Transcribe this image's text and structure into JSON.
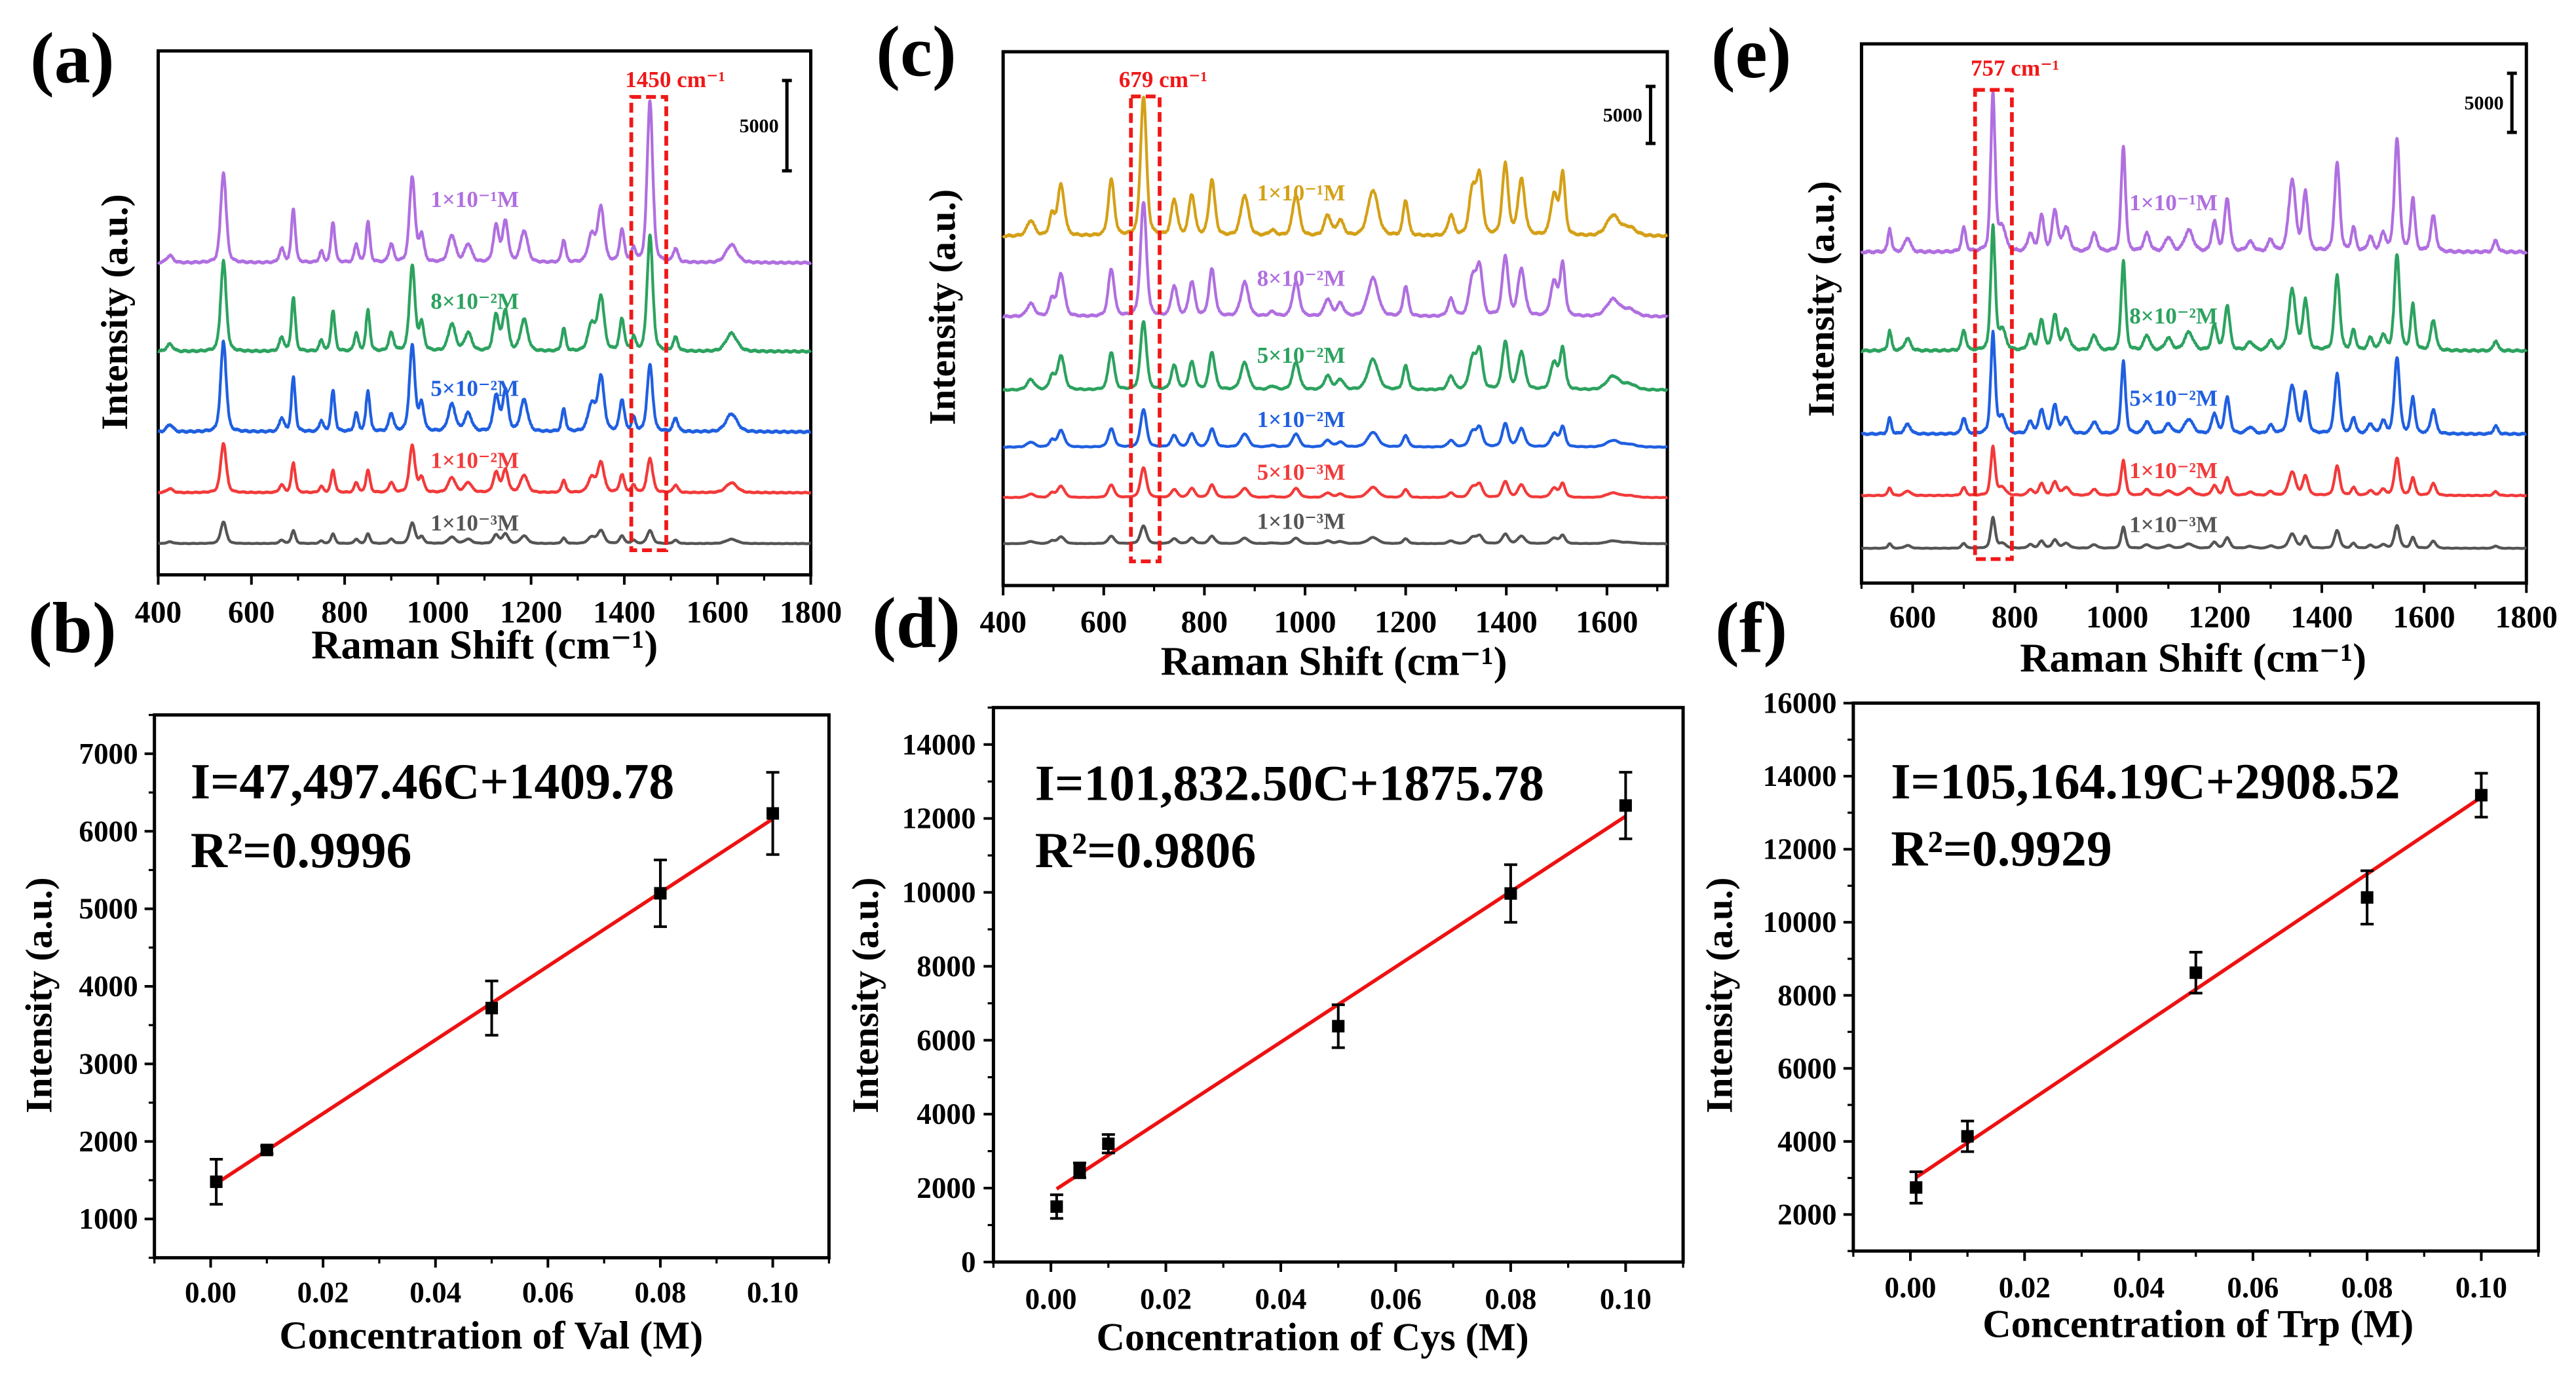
{
  "chart_data": [
    {
      "panel": "(a)",
      "type": "line",
      "xlabel": "Raman Shift (cm⁻¹)",
      "ylabel": "Intensity (a.u.)",
      "xlim": [
        400,
        1800
      ],
      "ylim": [
        0,
        29000
      ],
      "xticks": [
        "400",
        "600",
        "800",
        "1000",
        "1200",
        "1400",
        "1600",
        "1800"
      ],
      "minor_step": 100,
      "scale_bar": {
        "value": 5000,
        "label": "5000"
      },
      "highlight": {
        "label": "1450 cm⁻¹",
        "range": [
          1415,
          1490
        ],
        "marker_peak": 1455
      },
      "peaks": [
        [
          425,
          0.08,
          8
        ],
        [
          540,
          1.0,
          7
        ],
        [
          665,
          0.15,
          6
        ],
        [
          690,
          0.6,
          5
        ],
        [
          750,
          0.12,
          5
        ],
        [
          775,
          0.45,
          5
        ],
        [
          825,
          0.2,
          5
        ],
        [
          850,
          0.45,
          5
        ],
        [
          900,
          0.2,
          6
        ],
        [
          945,
          0.95,
          7
        ],
        [
          965,
          0.3,
          6
        ],
        [
          1030,
          0.3,
          9
        ],
        [
          1065,
          0.2,
          9
        ],
        [
          1125,
          0.4,
          7
        ],
        [
          1145,
          0.45,
          7
        ],
        [
          1185,
          0.35,
          9
        ],
        [
          1270,
          0.25,
          5
        ],
        [
          1330,
          0.3,
          9
        ],
        [
          1350,
          0.6,
          8
        ],
        [
          1395,
          0.35,
          6
        ],
        [
          1420,
          0.15,
          5
        ],
        [
          1455,
          0.6,
          7
        ],
        [
          1510,
          0.15,
          6
        ],
        [
          1630,
          0.2,
          14
        ]
      ],
      "traces": [
        {
          "label": "1×10⁻¹M",
          "color": "#b06fe0",
          "offset": 17270,
          "amp": 5000,
          "marker_mult": 3.0
        },
        {
          "label": "8×10⁻²M",
          "color": "#2ca25f",
          "offset": 12360,
          "amp": 5000,
          "marker_mult": 2.15
        },
        {
          "label": "5×10⁻²M",
          "color": "#1f5fe0",
          "offset": 7910,
          "amp": 5000,
          "marker_mult": 1.23
        },
        {
          "label": "1×10⁻²M",
          "color": "#f23a3a",
          "offset": 4545,
          "amp": 2750,
          "marker_mult": 1.15
        },
        {
          "label": "1×10⁻³M",
          "color": "#555555",
          "offset": 1730,
          "amp": 1200,
          "marker_mult": 1.0
        }
      ]
    },
    {
      "panel": "(b)",
      "type": "scatter",
      "xlabel": "Concentration of Val (M)",
      "ylabel": "Intensity (a.u.)",
      "xlim": [
        -0.01,
        0.11
      ],
      "ylim": [
        500,
        7500
      ],
      "xticks": [
        "0.00",
        "0.02",
        "0.04",
        "0.06",
        "0.08",
        "0.10"
      ],
      "x_minor_step": 0.01,
      "yticks": [
        "1000",
        "2000",
        "3000",
        "4000",
        "5000",
        "6000",
        "7000"
      ],
      "y_minor_step": 500,
      "points": {
        "x": [
          0.001,
          0.01,
          0.05,
          0.08,
          0.1
        ],
        "y": [
          1480,
          1890,
          3720,
          5200,
          6230
        ],
        "err": [
          290,
          50,
          350,
          430,
          530
        ]
      },
      "fit": {
        "slope": 47497.46,
        "intercept": 1409.78,
        "x_range": [
          0.001,
          0.1
        ],
        "color": "#ee1111"
      },
      "equation": "I=47,497.46C+1409.78",
      "r2": "R²=0.9996"
    },
    {
      "panel": "(c)",
      "type": "line",
      "xlabel": "Raman Shift (cm⁻¹)",
      "ylabel": "Intensity (a.u.)",
      "xlim": [
        400,
        1720
      ],
      "ylim": [
        0,
        46800
      ],
      "xticks": [
        "400",
        "600",
        "800",
        "1000",
        "1200",
        "1400",
        "1600"
      ],
      "minor_step": 100,
      "scale_bar": {
        "value": 5000,
        "label": "5000"
      },
      "highlight": {
        "label": "679 cm⁻¹",
        "range": [
          654,
          711
        ],
        "marker_peak": 679
      },
      "peaks": [
        [
          455,
          0.15,
          9
        ],
        [
          497,
          0.2,
          6
        ],
        [
          515,
          0.5,
          8
        ],
        [
          615,
          0.55,
          7
        ],
        [
          679,
          1.0,
          7
        ],
        [
          740,
          0.35,
          7
        ],
        [
          775,
          0.4,
          7
        ],
        [
          815,
          0.55,
          7
        ],
        [
          880,
          0.4,
          9
        ],
        [
          935,
          0.05,
          8
        ],
        [
          982,
          0.4,
          8
        ],
        [
          1045,
          0.2,
          8
        ],
        [
          1070,
          0.15,
          8
        ],
        [
          1135,
          0.45,
          12
        ],
        [
          1200,
          0.35,
          6
        ],
        [
          1290,
          0.2,
          7
        ],
        [
          1333,
          0.45,
          8
        ],
        [
          1347,
          0.55,
          7
        ],
        [
          1398,
          0.7,
          7
        ],
        [
          1430,
          0.55,
          8
        ],
        [
          1495,
          0.4,
          8
        ],
        [
          1512,
          0.6,
          6
        ],
        [
          1612,
          0.2,
          15
        ],
        [
          1645,
          0.08,
          15
        ]
      ],
      "traces": [
        {
          "label": "1×10⁻¹M",
          "color": "#d4a017",
          "offset": 30620,
          "amp": 8900,
          "marker_mult": 1.37
        },
        {
          "label": "8×10⁻²M",
          "color": "#b06fe0",
          "offset": 23560,
          "amp": 7500,
          "marker_mult": 1.33
        },
        {
          "label": "5×10⁻²M",
          "color": "#2ca25f",
          "offset": 17130,
          "amp": 6000,
          "marker_mult": 1.0
        },
        {
          "label": "1×10⁻²M",
          "color": "#1f5fe0",
          "offset": 12130,
          "amp": 2900,
          "marker_mult": 1.13
        },
        {
          "label": "5×10⁻³M",
          "color": "#f23a3a",
          "offset": 7710,
          "amp": 2000,
          "marker_mult": 1.3
        },
        {
          "label": "1×10⁻³M",
          "color": "#555555",
          "offset": 3670,
          "amp": 1200,
          "marker_mult": 1.3
        }
      ]
    },
    {
      "panel": "(d)",
      "type": "scatter",
      "xlabel": "Concentration of Cys (M)",
      "ylabel": "Intensity (a.u.)",
      "xlim": [
        -0.01,
        0.11
      ],
      "ylim": [
        0,
        15000
      ],
      "xticks": [
        "0.00",
        "0.02",
        "0.04",
        "0.06",
        "0.08",
        "0.10"
      ],
      "x_minor_step": 0.01,
      "yticks": [
        "0",
        "2000",
        "4000",
        "6000",
        "8000",
        "10000",
        "12000",
        "14000"
      ],
      "y_minor_step": 1000,
      "points": {
        "x": [
          0.001,
          0.005,
          0.01,
          0.05,
          0.08,
          0.1
        ],
        "y": [
          1500,
          2480,
          3200,
          6380,
          9970,
          12350
        ],
        "err": [
          320,
          200,
          250,
          580,
          780,
          900
        ]
      },
      "fit": {
        "slope": 101832.5,
        "intercept": 1875.78,
        "x_range": [
          0.001,
          0.1
        ],
        "color": "#ee1111"
      },
      "equation": "I=101,832.50C+1875.78",
      "r2": "R²=0.9806"
    },
    {
      "panel": "(e)",
      "type": "line",
      "xlabel": "Raman Shift (cm⁻¹)",
      "ylabel": "Intensity (a.u.)",
      "xlim": [
        500,
        1800
      ],
      "ylim": [
        0,
        45600
      ],
      "xticks": [
        "600",
        "800",
        "1000",
        "1200",
        "1400",
        "1600",
        "1800"
      ],
      "minor_step": 100,
      "scale_bar": {
        "value": 5000,
        "label": "5000"
      },
      "highlight": {
        "label": "757 cm⁻¹",
        "range": [
          722,
          794
        ],
        "marker_peak": 757
      },
      "peaks": [
        [
          555,
          0.2,
          4
        ],
        [
          590,
          0.12,
          7
        ],
        [
          700,
          0.2,
          5
        ],
        [
          757,
          1.0,
          5
        ],
        [
          775,
          0.2,
          8
        ],
        [
          830,
          0.15,
          6
        ],
        [
          852,
          0.3,
          6
        ],
        [
          878,
          0.35,
          6
        ],
        [
          900,
          0.2,
          8
        ],
        [
          955,
          0.15,
          7
        ],
        [
          1012,
          0.9,
          5
        ],
        [
          1058,
          0.15,
          7
        ],
        [
          1100,
          0.12,
          8
        ],
        [
          1140,
          0.18,
          10
        ],
        [
          1190,
          0.25,
          6
        ],
        [
          1215,
          0.45,
          6
        ],
        [
          1260,
          0.08,
          8
        ],
        [
          1300,
          0.1,
          6
        ],
        [
          1342,
          0.6,
          8
        ],
        [
          1368,
          0.5,
          6
        ],
        [
          1430,
          0.75,
          6
        ],
        [
          1462,
          0.2,
          5
        ],
        [
          1495,
          0.12,
          6
        ],
        [
          1520,
          0.15,
          6
        ],
        [
          1547,
          0.95,
          6
        ],
        [
          1578,
          0.45,
          5
        ],
        [
          1618,
          0.3,
          6
        ],
        [
          1740,
          0.1,
          5
        ]
      ],
      "traces": [
        {
          "label": "1×10⁻¹M",
          "color": "#b06fe0",
          "offset": 27990,
          "amp": 10000,
          "marker_mult": 1.35
        },
        {
          "label": "8×10⁻²M",
          "color": "#2ca25f",
          "offset": 19640,
          "amp": 8500,
          "marker_mult": 1.24
        },
        {
          "label": "5×10⁻²M",
          "color": "#1f5fe0",
          "offset": 12600,
          "amp": 6800,
          "marker_mult": 1.25
        },
        {
          "label": "1×10⁻²M",
          "color": "#f23a3a",
          "offset": 7400,
          "amp": 3300,
          "marker_mult": 1.25
        },
        {
          "label": "1×10⁻³M",
          "color": "#555555",
          "offset": 2940,
          "amp": 2000,
          "marker_mult": 1.3
        }
      ]
    },
    {
      "panel": "(f)",
      "type": "scatter",
      "xlabel": "Concentration of Trp (M)",
      "ylabel": "Intensity (a.u.)",
      "xlim": [
        -0.01,
        0.11
      ],
      "ylim": [
        1000,
        16000
      ],
      "xticks": [
        "0.00",
        "0.02",
        "0.04",
        "0.06",
        "0.08",
        "0.10"
      ],
      "x_minor_step": 0.01,
      "yticks": [
        "2000",
        "4000",
        "6000",
        "8000",
        "10000",
        "12000",
        "14000",
        "16000"
      ],
      "y_minor_step": 1000,
      "points": {
        "x": [
          0.001,
          0.01,
          0.05,
          0.08,
          0.1
        ],
        "y": [
          2740,
          4140,
          8620,
          10680,
          13480
        ],
        "err": [
          430,
          420,
          560,
          730,
          600
        ]
      },
      "fit": {
        "slope": 105164.19,
        "intercept": 2908.52,
        "x_range": [
          0.001,
          0.1
        ],
        "color": "#ee1111"
      },
      "equation": "I=105,164.19C+2908.52",
      "r2": "R²=0.9929"
    }
  ]
}
